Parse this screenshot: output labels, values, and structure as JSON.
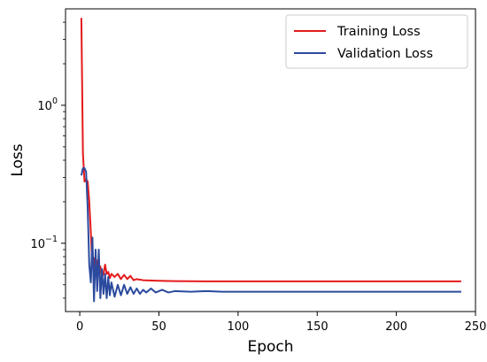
{
  "chart_data": {
    "type": "line",
    "title": "",
    "xlabel": "Epoch",
    "ylabel": "Loss",
    "xlim": [
      -9,
      250
    ],
    "ylim": [
      0.032,
      5.0
    ],
    "yscale": "log",
    "grid": false,
    "legend": {
      "position": "top-right"
    },
    "x_ticks": [
      0,
      50,
      100,
      150,
      200,
      250
    ],
    "y_ticks": [
      {
        "value": 1.0,
        "base": "10",
        "exp": "0"
      },
      {
        "value": 0.1,
        "base": "10",
        "exp": "−1"
      }
    ],
    "series": [
      {
        "name": "Training Loss",
        "color": "#e41a1c",
        "x": [
          1,
          2,
          3,
          4,
          5,
          6,
          7,
          8,
          9,
          10,
          11,
          12,
          13,
          14,
          15,
          16,
          17,
          18,
          19,
          20,
          22,
          24,
          26,
          28,
          30,
          32,
          34,
          36,
          40,
          50,
          60,
          80,
          100,
          150,
          200,
          241
        ],
        "y": [
          4.3,
          0.45,
          0.28,
          0.29,
          0.28,
          0.2,
          0.12,
          0.068,
          0.078,
          0.058,
          0.075,
          0.06,
          0.068,
          0.057,
          0.06,
          0.07,
          0.06,
          0.062,
          0.056,
          0.06,
          0.057,
          0.06,
          0.055,
          0.059,
          0.055,
          0.058,
          0.054,
          0.055,
          0.054,
          0.0535,
          0.0532,
          0.053,
          0.053,
          0.053,
          0.053,
          0.053
        ]
      },
      {
        "name": "Validation Loss",
        "color": "#2b4a9e",
        "x": [
          1,
          2,
          3,
          4,
          5,
          6,
          7,
          8,
          9,
          10,
          11,
          12,
          13,
          14,
          15,
          16,
          17,
          18,
          19,
          20,
          22,
          24,
          26,
          28,
          30,
          32,
          34,
          36,
          38,
          40,
          42,
          45,
          48,
          52,
          56,
          60,
          70,
          80,
          90,
          100,
          150,
          200,
          241
        ],
        "y": [
          0.31,
          0.35,
          0.35,
          0.33,
          0.18,
          0.07,
          0.052,
          0.11,
          0.038,
          0.09,
          0.045,
          0.09,
          0.04,
          0.065,
          0.043,
          0.06,
          0.04,
          0.057,
          0.042,
          0.052,
          0.041,
          0.05,
          0.042,
          0.05,
          0.043,
          0.048,
          0.043,
          0.047,
          0.043,
          0.046,
          0.044,
          0.047,
          0.044,
          0.046,
          0.044,
          0.045,
          0.0445,
          0.045,
          0.0445,
          0.0445,
          0.0445,
          0.0445,
          0.0445
        ]
      }
    ]
  }
}
